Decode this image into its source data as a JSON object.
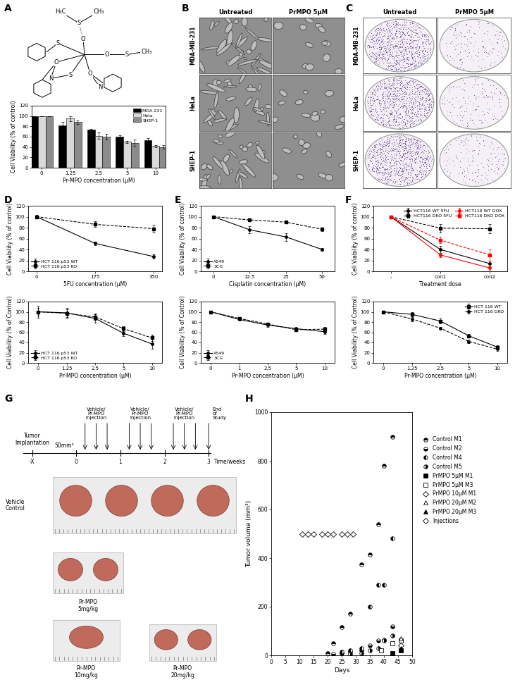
{
  "panel_labels": [
    "A",
    "B",
    "C",
    "D",
    "E",
    "F",
    "G",
    "H"
  ],
  "structure": {
    "atoms": [
      "H₃C",
      "S",
      "CH₃",
      "O",
      "S",
      "O",
      "S",
      "N",
      "O",
      "N",
      "O",
      "S",
      "CH₃"
    ]
  },
  "images": {
    "B": {
      "columns": [
        "Untreated",
        "PrMPO 5μM"
      ],
      "rows": [
        "MDA-MB-231",
        "HeLa",
        "SHEP-1"
      ]
    },
    "C": {
      "columns": [
        "Untreated",
        "PrMPO 5μM"
      ],
      "rows": [
        "MDA-MB-231",
        "HeLa",
        "SHEP-1"
      ]
    }
  },
  "chart_data": [
    {
      "type": "bar",
      "xlabel": "Pr-MPO concentration (μM)",
      "ylabel": "Cell Viability (% of control)",
      "categories": [
        "0",
        "1.25",
        "2.5",
        "5",
        "10"
      ],
      "series": [
        {
          "name": "MDA 231",
          "color": "#000000",
          "values": [
            100,
            82,
            73,
            60,
            53
          ],
          "errors": [
            0,
            6,
            2,
            3,
            4
          ]
        },
        {
          "name": "Hela",
          "color": "#d9d9d9",
          "values": [
            100,
            95,
            62,
            50,
            42
          ],
          "errors": [
            0,
            5,
            6,
            2,
            2
          ]
        },
        {
          "name": "SHEP-1",
          "color": "#8c8c8c",
          "values": [
            100,
            88,
            60,
            48,
            40
          ],
          "errors": [
            0,
            3,
            5,
            6,
            3
          ]
        }
      ],
      "ylim": [
        0,
        120
      ],
      "yticks": [
        0,
        20,
        40,
        60,
        80,
        100,
        120
      ],
      "legend": "upper right"
    },
    {
      "type": "line",
      "xlabel": "5FU concentration (μM)",
      "ylabel": "Cell Viability (% of control)",
      "x": [
        0,
        175,
        350
      ],
      "xlim": [
        -25,
        375
      ],
      "xticks": [
        0,
        175,
        350
      ],
      "series": [
        {
          "name": "HCT 116 p53 WT",
          "color": "#000000",
          "marker": "circle",
          "line_style": "solid",
          "values": [
            100,
            51,
            27
          ],
          "errors": [
            2,
            3,
            4
          ]
        },
        {
          "name": "HCT 116 p53 KO",
          "color": "#000000",
          "marker": "square",
          "line_style": "dashed",
          "values": [
            100,
            86,
            78
          ],
          "errors": [
            3,
            5,
            7
          ]
        }
      ],
      "ylim": [
        0,
        120
      ],
      "yticks": [
        0,
        20,
        40,
        60,
        80,
        100,
        120
      ],
      "legend": "lower left"
    },
    {
      "type": "line",
      "xlabel": "Pr-MPO concentration (μM)",
      "ylabel": "Cell Viability (% of Control)",
      "categories": [
        "0",
        "1.25",
        "2.5",
        "5",
        "10"
      ],
      "series": [
        {
          "name": "HCT 116 p53 WT",
          "color": "#000000",
          "marker": "circle",
          "line_style": "solid",
          "values": [
            100,
            98,
            87,
            58,
            37
          ],
          "errors": [
            12,
            10,
            8,
            5,
            10
          ]
        },
        {
          "name": "HCT 116 p53 KO",
          "color": "#000000",
          "marker": "square",
          "line_style": "dashed",
          "values": [
            100,
            97,
            90,
            67,
            49
          ],
          "errors": [
            8,
            8,
            6,
            5,
            6
          ]
        }
      ],
      "ylim": [
        0,
        120
      ],
      "yticks": [
        0,
        20,
        40,
        60,
        80,
        100,
        120
      ],
      "legend": "lower left"
    },
    {
      "type": "line",
      "xlabel": "Cisplatin concentration (μM)",
      "ylabel": "Cell Viability (% of control)",
      "categories": [
        "0",
        "12.5",
        "25",
        "50"
      ],
      "series": [
        {
          "name": "A549",
          "color": "#000000",
          "marker": "circle",
          "line_style": "solid",
          "values": [
            100,
            76,
            63,
            40
          ],
          "errors": [
            2,
            6,
            7,
            2
          ]
        },
        {
          "name": "3CG",
          "color": "#000000",
          "marker": "square",
          "line_style": "dashed",
          "values": [
            100,
            94,
            90,
            77
          ],
          "errors": [
            2,
            3,
            2,
            3
          ]
        }
      ],
      "ylim": [
        0,
        120
      ],
      "yticks": [
        0,
        20,
        40,
        60,
        80,
        100,
        120
      ],
      "legend": "lower left"
    },
    {
      "type": "line",
      "xlabel": "Pr-MPO concentration (μM)",
      "ylabel": "Cell Viability (% of Control)",
      "categories": [
        "0",
        "1",
        "2.5",
        "5",
        "10"
      ],
      "series": [
        {
          "name": "A549",
          "color": "#000000",
          "marker": "circle",
          "line_style": "solid",
          "values": [
            100,
            85,
            74,
            67,
            61
          ],
          "errors": [
            2,
            2,
            3,
            2,
            5
          ]
        },
        {
          "name": "3CG",
          "color": "#000000",
          "marker": "square",
          "line_style": "dashed",
          "values": [
            100,
            87,
            76,
            65,
            66
          ],
          "errors": [
            2,
            2,
            2,
            2,
            4
          ]
        }
      ],
      "ylim": [
        0,
        120
      ],
      "yticks": [
        0,
        20,
        40,
        60,
        80,
        100,
        120
      ],
      "legend": "lower left"
    },
    {
      "type": "line",
      "xlabel": "Treatment dose",
      "ylabel": "Cell Viability (% of control)",
      "categories": [
        "-",
        "con1",
        "con2"
      ],
      "series": [
        {
          "name": "HCT116 WT 5FU",
          "color": "#000000",
          "marker": "circle",
          "line_style": "solid",
          "values": [
            100,
            40,
            14
          ],
          "errors": [
            0,
            6,
            5
          ]
        },
        {
          "name": "HCT116 DKO 5FU",
          "color": "#000000",
          "marker": "square",
          "line_style": "dashed",
          "values": [
            100,
            79,
            78
          ],
          "errors": [
            0,
            8,
            8
          ]
        },
        {
          "name": "HCT116 WT DOX",
          "color": "#ff0000",
          "marker": "circle",
          "line_style": "solid",
          "values": [
            100,
            30,
            6
          ],
          "errors": [
            0,
            4,
            3
          ]
        },
        {
          "name": "HCT116 DKO DOX",
          "color": "#ff0000",
          "marker": "square",
          "line_style": "dashed",
          "values": [
            100,
            57,
            30
          ],
          "errors": [
            0,
            6,
            10
          ]
        }
      ],
      "ylim": [
        0,
        120
      ],
      "yticks": [
        0,
        20,
        40,
        60,
        80,
        100,
        120
      ],
      "legend": "upper right"
    },
    {
      "type": "line",
      "xlabel": "Pr-MPO concentration (μM)",
      "ylabel": "Cell Viability (% of Control)",
      "categories": [
        "0",
        "1.25",
        "2.5",
        "5",
        "10"
      ],
      "series": [
        {
          "name": "HCT 116 WT",
          "color": "#000000",
          "marker": "square",
          "line_style": "solid",
          "values": [
            100,
            95,
            82,
            53,
            31
          ],
          "errors": [
            2,
            4,
            5,
            3,
            3
          ]
        },
        {
          "name": "HCT 116 DKO",
          "color": "#000000",
          "marker": "circle",
          "line_style": "dashed",
          "values": [
            100,
            86,
            68,
            42,
            27
          ],
          "errors": [
            2,
            4,
            2,
            4,
            3
          ]
        }
      ],
      "ylim": [
        0,
        120
      ],
      "yticks": [
        0,
        20,
        40,
        60,
        80,
        100,
        120
      ],
      "legend": "upper right"
    },
    {
      "type": "scatter",
      "xlabel": "Days",
      "ylabel": "Tumor volume (mm³)",
      "xlim": [
        0,
        50
      ],
      "xticks": [
        0,
        5,
        10,
        15,
        20,
        25,
        30,
        35,
        40,
        45,
        50
      ],
      "ylim": [
        0,
        1000
      ],
      "yticks": [
        0,
        200,
        400,
        600,
        800,
        1000
      ],
      "series": [
        {
          "name": "Control M1",
          "color": "#000000",
          "marker": "circle_top",
          "x": [
            20,
            22,
            25,
            28,
            32,
            35,
            38,
            40,
            43
          ],
          "values": [
            10,
            50,
            115,
            170,
            375,
            415,
            540,
            780,
            900
          ]
        },
        {
          "name": "Control M2",
          "color": "#000000",
          "marker": "circle_bottom",
          "x": [
            22,
            25,
            28,
            32,
            35,
            38,
            40,
            43
          ],
          "values": [
            5,
            10,
            15,
            20,
            40,
            60,
            65,
            120
          ]
        },
        {
          "name": "Control M4",
          "color": "#000000",
          "marker": "circle_left",
          "x": [
            25,
            28,
            32,
            35,
            38,
            40,
            43
          ],
          "values": [
            15,
            20,
            30,
            200,
            290,
            290,
            480
          ]
        },
        {
          "name": "Control M5",
          "color": "#000000",
          "marker": "circle_right",
          "x": [
            28,
            32,
            35,
            38,
            40,
            43
          ],
          "values": [
            5,
            10,
            20,
            30,
            60,
            80
          ]
        },
        {
          "name": "PrMPO 5μM M1",
          "color": "#000000",
          "marker": "square",
          "x": [
            43,
            46
          ],
          "values": [
            10,
            20
          ]
        },
        {
          "name": "PrMPO 5μM M3",
          "color": "#000000",
          "marker": "square_open",
          "x": [
            39,
            43,
            46
          ],
          "values": [
            20,
            50,
            60
          ]
        },
        {
          "name": "PrMPO 10μM M1",
          "color": "#000000",
          "marker": "diamond_open",
          "x": [
            46
          ],
          "values": [
            40
          ]
        },
        {
          "name": "PrMPO 20μM M2",
          "color": "#000000",
          "marker": "triangle_open",
          "x": [
            46
          ],
          "values": [
            70
          ]
        },
        {
          "name": "PrMPO 20μM M3",
          "color": "#000000",
          "marker": "triangle",
          "x": [
            46
          ],
          "values": [
            30
          ]
        },
        {
          "name": "Injections",
          "color": "#000000",
          "marker": "diamond_open",
          "x": [
            11,
            13,
            15,
            18,
            20,
            22,
            25,
            27,
            29
          ],
          "values": [
            500,
            500,
            500,
            500,
            500,
            500,
            500,
            500,
            500
          ]
        }
      ],
      "legend": "right"
    }
  ],
  "timeline": {
    "implantation": "Tumor\nImplantation",
    "start_size": "50mm³",
    "injection": "Vehicle/\nPr-MPO\nInjection",
    "end": "End\nof\nStudy",
    "ticks": [
      "-X",
      "0",
      "1",
      "2",
      "3"
    ],
    "axis_label": "Time/weeks",
    "injections_per_week": 3
  },
  "tumors": [
    {
      "label": "Vehicle\nControl",
      "count": 4
    },
    {
      "label": "Pr-MPO\n5mg/kg",
      "count": 2
    },
    {
      "label": "Pr-MPO\n10mg/kg",
      "count": 1
    },
    {
      "label": "Pr-MPO\n20mg/kg",
      "count": 2
    }
  ]
}
